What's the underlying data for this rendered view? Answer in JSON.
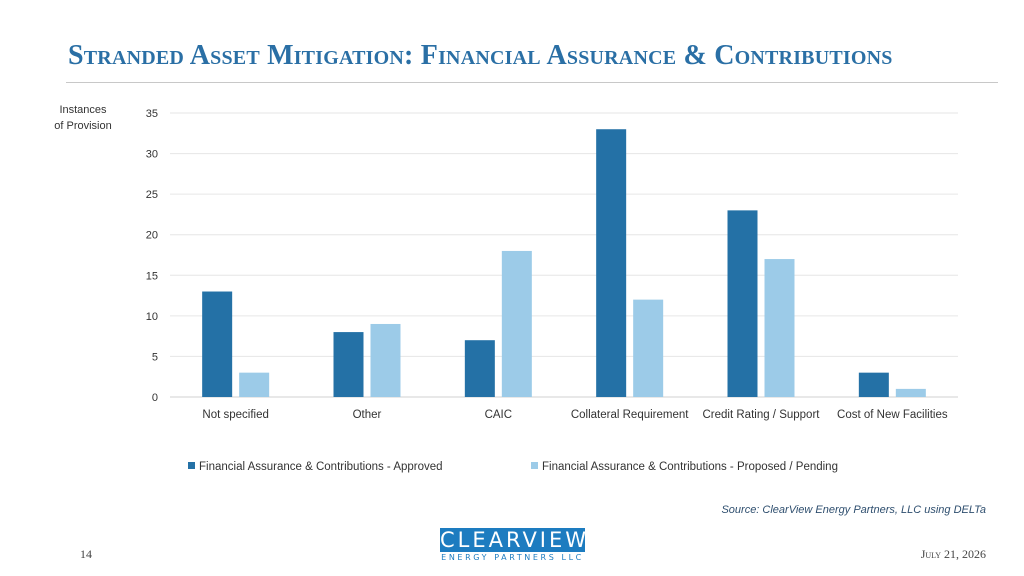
{
  "slide": {
    "title": "Stranded Asset Mitigation: Financial Assurance & Contributions",
    "source": "Source: ClearView Energy Partners, LLC using DELTa",
    "page_number": "14",
    "date": "July 21, 2026",
    "logo_text": "CLEARVIEW",
    "logo_subtext": "ENERGY PARTNERS LLC"
  },
  "chart_data": {
    "type": "bar",
    "ylabel_lines": [
      "Instances",
      "of Provision"
    ],
    "ylim": [
      0,
      35
    ],
    "yticks": [
      0,
      5,
      10,
      15,
      20,
      25,
      30,
      35
    ],
    "grid": true,
    "legend_position": "bottom",
    "categories": [
      "Not specified",
      "Other",
      "CAIC",
      "Collateral Requirement",
      "Credit Rating / Support",
      "Cost of New Facilities"
    ],
    "series": [
      {
        "name": "Financial Assurance & Contributions - Approved",
        "color": "#2471a6",
        "values": [
          13,
          8,
          7,
          33,
          23,
          3
        ]
      },
      {
        "name": "Financial Assurance & Contributions - Proposed / Pending",
        "color": "#9ccbe8",
        "values": [
          3,
          9,
          18,
          12,
          17,
          1
        ]
      }
    ]
  }
}
